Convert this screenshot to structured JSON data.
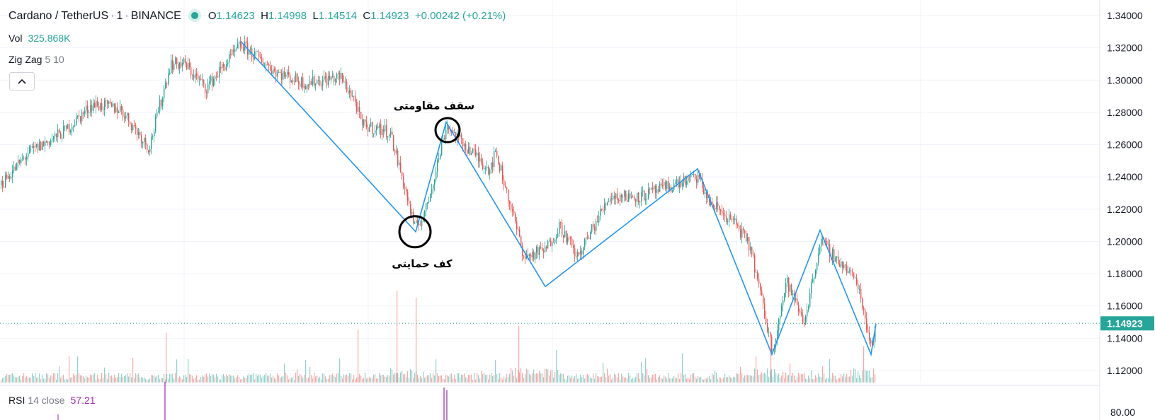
{
  "header": {
    "symbol": "Cardano / TetherUS",
    "interval": "1",
    "exchange": "BINANCE",
    "open_label": "O",
    "open": "1.14623",
    "high_label": "H",
    "high": "1.14998",
    "low_label": "L",
    "low": "1.14514",
    "close_label": "C",
    "close": "1.14923",
    "change": "+0.00242 (+0.21%)"
  },
  "indicators": {
    "vol_label": "Vol",
    "vol_value": "325.868K",
    "zigzag_label": "Zig Zag",
    "zigzag_params": "5 10",
    "rsi_label": "RSI",
    "rsi_params": "14 close",
    "rsi_value": "57.21",
    "rsi_axis_label": "80.00"
  },
  "colors": {
    "up": "#26a69a",
    "down": "#ef5350",
    "zigzag": "#2196f3",
    "rsi": "#9c27b0",
    "text": "#131722"
  },
  "chart_data": {
    "type": "candlestick",
    "yaxis_ticks": [
      "1.34000",
      "1.32000",
      "1.30000",
      "1.28000",
      "1.26000",
      "1.24000",
      "1.22000",
      "1.20000",
      "1.18000",
      "1.16000",
      "1.14000",
      "1.12000"
    ],
    "ylim": [
      1.112,
      1.346
    ],
    "last_price": "1.14923",
    "price_path": [
      [
        0,
        1.235
      ],
      [
        40,
        1.255
      ],
      [
        90,
        1.268
      ],
      [
        130,
        1.285
      ],
      [
        170,
        1.282
      ],
      [
        210,
        1.258
      ],
      [
        240,
        1.31
      ],
      [
        260,
        1.31
      ],
      [
        290,
        1.295
      ],
      [
        340,
        1.322
      ],
      [
        390,
        1.305
      ],
      [
        430,
        1.298
      ],
      [
        480,
        1.302
      ],
      [
        500,
        1.288
      ],
      [
        510,
        1.272
      ],
      [
        550,
        1.268
      ],
      [
        570,
        1.235
      ],
      [
        585,
        1.208
      ],
      [
        600,
        1.218
      ],
      [
        630,
        1.272
      ],
      [
        650,
        1.262
      ],
      [
        690,
        1.245
      ],
      [
        700,
        1.255
      ],
      [
        740,
        1.19
      ],
      [
        770,
        1.195
      ],
      [
        790,
        1.21
      ],
      [
        815,
        1.19
      ],
      [
        860,
        1.228
      ],
      [
        905,
        1.228
      ],
      [
        950,
        1.235
      ],
      [
        985,
        1.24
      ],
      [
        1000,
        1.225
      ],
      [
        1040,
        1.21
      ],
      [
        1060,
        1.195
      ],
      [
        1090,
        1.132
      ],
      [
        1110,
        1.175
      ],
      [
        1135,
        1.15
      ],
      [
        1158,
        1.2
      ],
      [
        1190,
        1.185
      ],
      [
        1210,
        1.175
      ],
      [
        1230,
        1.135
      ],
      [
        1237,
        1.149
      ]
    ],
    "zigzag": [
      [
        340,
        1.324
      ],
      [
        587,
        1.206
      ],
      [
        630,
        1.274
      ],
      [
        770,
        1.172
      ],
      [
        985,
        1.245
      ],
      [
        1090,
        1.13
      ],
      [
        1158,
        1.207
      ],
      [
        1230,
        1.13
      ],
      [
        1237,
        1.149
      ]
    ],
    "annotations": [
      {
        "text": "سقف مقاومتی",
        "x": 613,
        "y": 1.282,
        "circle": [
          632,
          1.269
        ]
      },
      {
        "text": "کف حمایتی",
        "x": 596,
        "y": 1.184,
        "circle": [
          586,
          1.206
        ]
      }
    ],
    "rsi_spikes": [
      [
        233,
        540
      ],
      [
        627,
        548
      ],
      [
        631,
        552
      ]
    ],
    "grid": true,
    "legend": "top-left"
  }
}
